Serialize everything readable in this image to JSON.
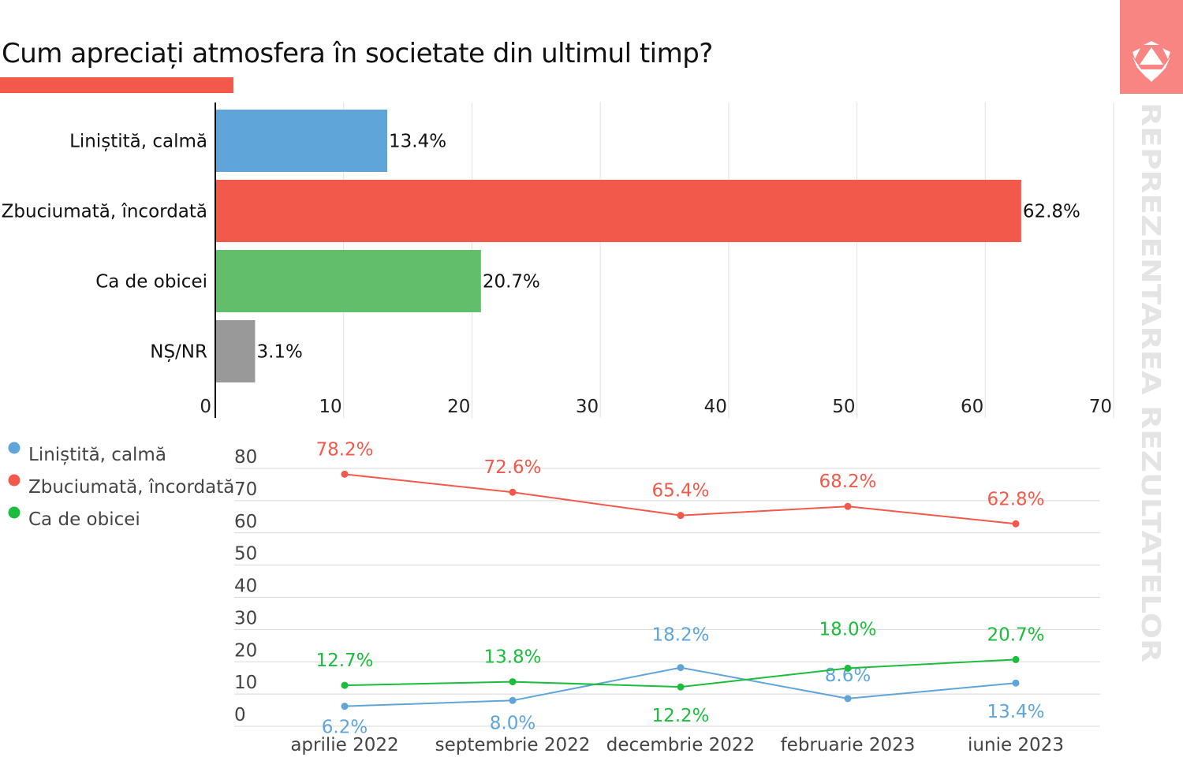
{
  "title": "Cum apreciați atmosfera în societate din ultimul timp?",
  "watermark": "REPREZENTAREA REZULTATELOR",
  "colors": {
    "accent": "#f2594b",
    "logo_bg": "#f88582",
    "blue": "#5fa5d9",
    "red": "#f2594b",
    "green": "#63be6c",
    "gray": "#999999",
    "line_green": "#1bbd3c"
  },
  "chart_data": [
    {
      "type": "bar",
      "orientation": "horizontal",
      "categories": [
        "Liniștită, calmă",
        "Zbuciumată, încordată",
        "Ca de obicei",
        "NȘ/NR"
      ],
      "values": [
        13.4,
        62.8,
        20.7,
        3.1
      ],
      "labels": [
        "13.4%",
        "62.8%",
        "20.7%",
        "3.1%"
      ],
      "bar_colors": [
        "#5fa5d9",
        "#f2594b",
        "#63be6c",
        "#999999"
      ],
      "xlim": [
        0,
        70
      ],
      "xticks": [
        "0",
        "10",
        "20",
        "30",
        "40",
        "50",
        "60",
        "70"
      ],
      "grid": true
    },
    {
      "type": "line",
      "x": [
        "aprilie 2022",
        "septembrie 2022",
        "decembrie 2022",
        "februarie 2023",
        "iunie 2023"
      ],
      "ylim": [
        0,
        80
      ],
      "yticks": [
        "0",
        "10",
        "20",
        "30",
        "40",
        "50",
        "60",
        "70",
        "80"
      ],
      "legend_position": "top-left",
      "series": [
        {
          "name": "Liniștită, calmă",
          "color": "#5fa5d9",
          "values": [
            6.2,
            8.0,
            18.2,
            8.6,
            13.4
          ],
          "labels": [
            "6.2%",
            "8.0%",
            "18.2%",
            "8.6%",
            "13.4%"
          ]
        },
        {
          "name": "Zbuciumată, încordată",
          "color": "#f2594b",
          "values": [
            78.2,
            72.6,
            65.4,
            68.2,
            62.8
          ],
          "labels": [
            "78.2%",
            "72.6%",
            "65.4%",
            "68.2%",
            "62.8%"
          ]
        },
        {
          "name": "Ca de obicei",
          "color": "#1bbd3c",
          "values": [
            12.7,
            13.8,
            12.2,
            18.0,
            20.7
          ],
          "labels": [
            "12.7%",
            "13.8%",
            "12.2%",
            "18.0%",
            "20.7%"
          ]
        }
      ]
    }
  ]
}
